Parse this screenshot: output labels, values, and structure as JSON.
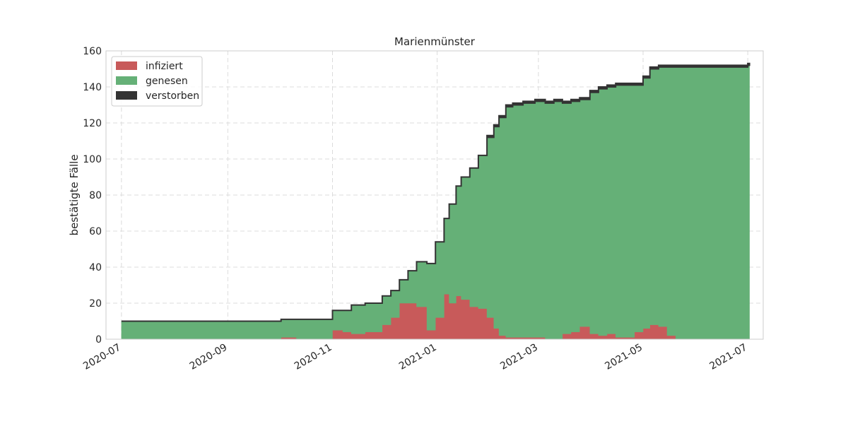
{
  "chart_data": {
    "type": "area",
    "stacked": true,
    "title": "Marienmünster",
    "ylabel": "bestätigte Fälle",
    "xlabel": "",
    "xlim": [
      "2020-06-22",
      "2021-07-10"
    ],
    "ylim": [
      0,
      160
    ],
    "yticks": [
      0,
      20,
      40,
      60,
      80,
      100,
      120,
      140,
      160
    ],
    "xticks": [
      "2020-07",
      "2020-09",
      "2020-11",
      "2021-01",
      "2021-03",
      "2021-05",
      "2021-07"
    ],
    "grid": true,
    "legend": "top-left",
    "x": [
      "2020-07-01",
      "2020-10-01",
      "2020-10-02",
      "2020-10-10",
      "2020-10-11",
      "2020-10-31",
      "2020-11-01",
      "2020-11-07",
      "2020-11-12",
      "2020-11-20",
      "2020-11-30",
      "2020-12-05",
      "2020-12-10",
      "2020-12-15",
      "2020-12-20",
      "2020-12-26",
      "2020-12-31",
      "2021-01-05",
      "2021-01-08",
      "2021-01-12",
      "2021-01-15",
      "2021-01-20",
      "2021-01-25",
      "2021-01-30",
      "2021-02-03",
      "2021-02-06",
      "2021-02-10",
      "2021-02-14",
      "2021-02-20",
      "2021-02-27",
      "2021-03-05",
      "2021-03-10",
      "2021-03-15",
      "2021-03-20",
      "2021-03-25",
      "2021-03-31",
      "2021-04-05",
      "2021-04-10",
      "2021-04-15",
      "2021-04-20",
      "2021-04-26",
      "2021-05-01",
      "2021-05-05",
      "2021-05-10",
      "2021-05-15",
      "2021-05-20",
      "2021-05-27",
      "2021-06-03",
      "2021-06-15",
      "2021-06-27",
      "2021-07-01"
    ],
    "series": [
      {
        "name": "infiziert",
        "color": "#c85a5a",
        "values": [
          0,
          0,
          1,
          1,
          0,
          0,
          5,
          4,
          3,
          4,
          8,
          12,
          20,
          20,
          18,
          5,
          12,
          25,
          20,
          24,
          22,
          18,
          17,
          12,
          6,
          2,
          1,
          1,
          1,
          1,
          0,
          0,
          3,
          4,
          7,
          3,
          2,
          3,
          1,
          1,
          4,
          6,
          8,
          7,
          2,
          0,
          0,
          0,
          0,
          0,
          0
        ]
      },
      {
        "name": "genesen",
        "color": "#65b077",
        "values": [
          10,
          10,
          10,
          10,
          11,
          11,
          11,
          12,
          16,
          16,
          16,
          15,
          13,
          18,
          25,
          37,
          42,
          42,
          55,
          61,
          68,
          77,
          85,
          100,
          112,
          121,
          128,
          129,
          130,
          131,
          131,
          132,
          128,
          128,
          126,
          134,
          137,
          137,
          140,
          140,
          137,
          139,
          142,
          144,
          149,
          151,
          151,
          151,
          151,
          151,
          152
        ]
      },
      {
        "name": "verstorben",
        "color": "#333333",
        "values": [
          0,
          0,
          0,
          0,
          0,
          0,
          0,
          0,
          0,
          0,
          0,
          0,
          0,
          0,
          0,
          0,
          0,
          0,
          0,
          0,
          0,
          0,
          0,
          1,
          1,
          1,
          1,
          1,
          1,
          1,
          1,
          1,
          1,
          1,
          1,
          1,
          1,
          1,
          1,
          1,
          1,
          1,
          1,
          1,
          1,
          1,
          1,
          1,
          1,
          1,
          1
        ]
      }
    ]
  }
}
